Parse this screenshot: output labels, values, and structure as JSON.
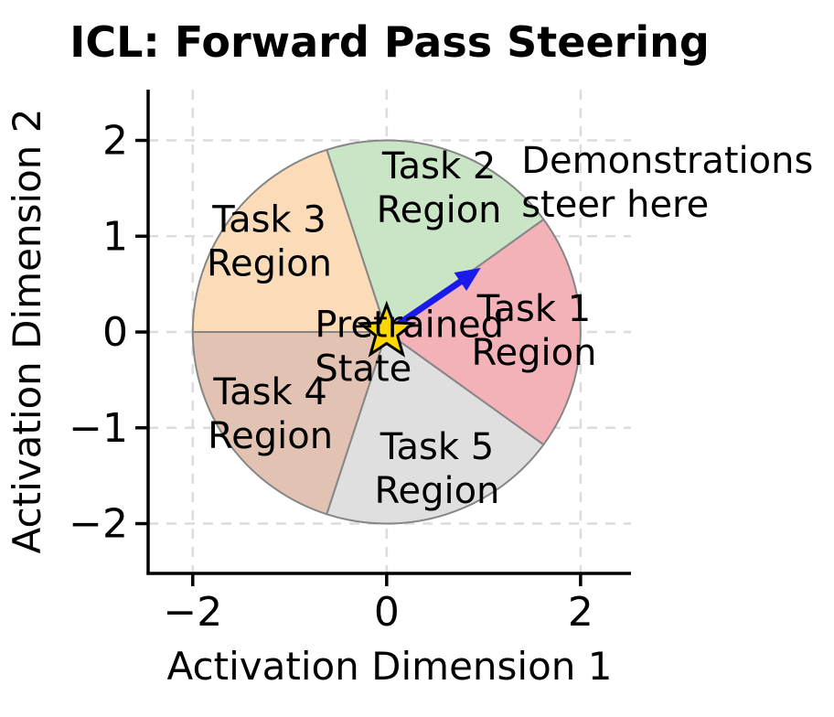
{
  "figure": {
    "title": "ICL: Forward Pass Steering"
  },
  "chart_data": {
    "type": "pie",
    "title": "ICL: Forward Pass Steering",
    "xlabel": "Activation Dimension 1",
    "ylabel": "Activation Dimension 2",
    "xlim": [
      -2.46,
      2.52
    ],
    "ylim": [
      -2.52,
      2.53
    ],
    "xticks": [
      -2,
      0,
      2
    ],
    "xtick_labels": [
      "−2",
      "0",
      "2"
    ],
    "yticks": [
      2,
      1,
      0,
      -1,
      -2
    ],
    "ytick_labels": [
      "2",
      "1",
      "0",
      "−1",
      "−2"
    ],
    "grid": {
      "show": true,
      "color": "#dcdcdc",
      "dash": [
        11,
        9
      ]
    },
    "circle": {
      "center": [
        0,
        0
      ],
      "radius": 2,
      "edge_color": "#868686"
    },
    "wedges": [
      {
        "name": "Task 1 Region",
        "label_lines": [
          "Task 1",
          "Region"
        ],
        "start_angle_deg": -36,
        "end_angle_deg": 36,
        "fill": "#f3b2b8",
        "label_xy": [
          1.52,
          0.0
        ]
      },
      {
        "name": "Task 2 Region",
        "label_lines": [
          "Task 2",
          "Region"
        ],
        "start_angle_deg": 36,
        "end_angle_deg": 108,
        "fill": "#cae4c6",
        "label_xy": [
          0.54,
          1.49
        ]
      },
      {
        "name": "Task 3 Region",
        "label_lines": [
          "Task 3",
          "Region"
        ],
        "start_angle_deg": 108,
        "end_angle_deg": 180,
        "fill": "#fcdcb8",
        "label_xy": [
          -1.21,
          0.93
        ]
      },
      {
        "name": "Task 4 Region",
        "label_lines": [
          "Task 4",
          "Region"
        ],
        "start_angle_deg": 180,
        "end_angle_deg": 252,
        "fill": "#e2c3b3",
        "label_xy": [
          -1.2,
          -0.87
        ]
      },
      {
        "name": "Task 5 Region",
        "label_lines": [
          "Task 5",
          "Region"
        ],
        "start_angle_deg": 252,
        "end_angle_deg": 324,
        "fill": "#dfdfdf",
        "label_xy": [
          0.52,
          -1.44
        ]
      }
    ],
    "star_marker": {
      "xy": [
        0,
        0
      ],
      "fill": "#ffd700",
      "edge": "#000000",
      "label_lines": [
        "Pretrained",
        "State"
      ],
      "label_anchor_xy": [
        -0.74,
        -0.05
      ]
    },
    "arrow": {
      "from_xy": [
        0,
        0
      ],
      "to_xy": [
        0.97,
        0.67
      ],
      "color": "#1a1aeb"
    },
    "annotation": {
      "lines": [
        "Demonstrations",
        "steer here"
      ],
      "anchor_xy": [
        1.39,
        1.66
      ]
    }
  }
}
